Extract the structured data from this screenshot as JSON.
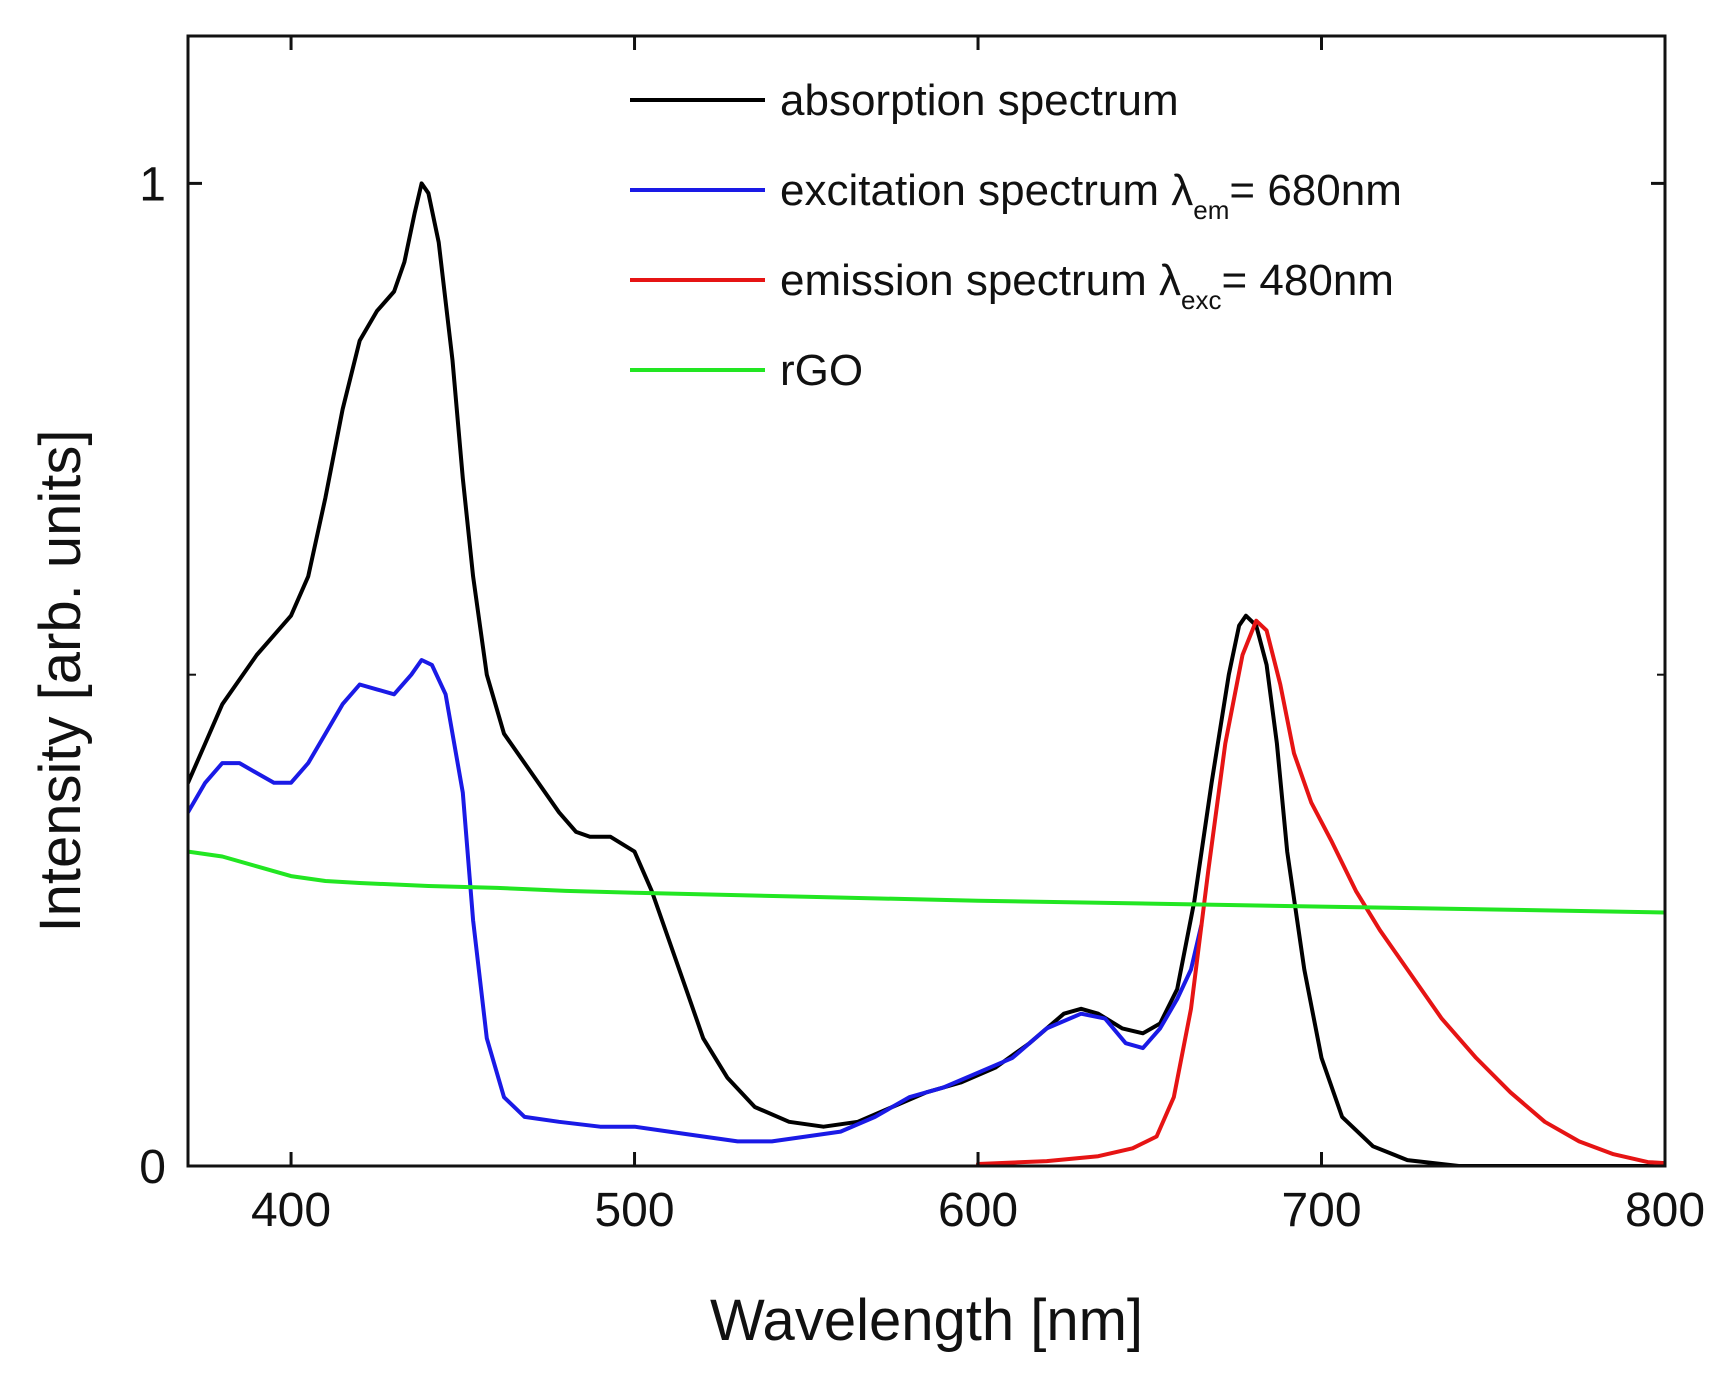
{
  "chart_data": {
    "type": "line",
    "xlabel": "Wavelength [nm]",
    "ylabel": "Intensity [arb. units]",
    "xlim": [
      370,
      800
    ],
    "ylim": [
      0,
      1.15
    ],
    "x_ticks": [
      400,
      500,
      600,
      700,
      800
    ],
    "x_tick_labels": [
      "400",
      "500",
      "600",
      "700",
      "800"
    ],
    "y_ticks": [
      0,
      1
    ],
    "y_tick_labels": [
      "0",
      "1"
    ],
    "y_minor_ticks": [
      0.5
    ],
    "grid": false,
    "legend_position": "top-right",
    "series": [
      {
        "name": "absorption spectrum",
        "legend_main": "absorption spectrum",
        "legend_sub": "",
        "legend_tail": "",
        "color": "#000000",
        "points": [
          [
            370,
            0.39
          ],
          [
            375,
            0.43
          ],
          [
            380,
            0.47
          ],
          [
            390,
            0.52
          ],
          [
            400,
            0.56
          ],
          [
            405,
            0.6
          ],
          [
            410,
            0.68
          ],
          [
            415,
            0.77
          ],
          [
            420,
            0.84
          ],
          [
            425,
            0.87
          ],
          [
            430,
            0.89
          ],
          [
            433,
            0.92
          ],
          [
            436,
            0.97
          ],
          [
            438,
            1.0
          ],
          [
            440,
            0.99
          ],
          [
            443,
            0.94
          ],
          [
            447,
            0.82
          ],
          [
            450,
            0.7
          ],
          [
            453,
            0.6
          ],
          [
            457,
            0.5
          ],
          [
            462,
            0.44
          ],
          [
            470,
            0.4
          ],
          [
            478,
            0.36
          ],
          [
            483,
            0.34
          ],
          [
            487,
            0.335
          ],
          [
            493,
            0.335
          ],
          [
            500,
            0.32
          ],
          [
            505,
            0.28
          ],
          [
            510,
            0.23
          ],
          [
            515,
            0.18
          ],
          [
            520,
            0.13
          ],
          [
            527,
            0.09
          ],
          [
            535,
            0.06
          ],
          [
            545,
            0.045
          ],
          [
            555,
            0.04
          ],
          [
            565,
            0.045
          ],
          [
            575,
            0.06
          ],
          [
            585,
            0.075
          ],
          [
            595,
            0.085
          ],
          [
            605,
            0.1
          ],
          [
            615,
            0.125
          ],
          [
            625,
            0.155
          ],
          [
            630,
            0.16
          ],
          [
            635,
            0.155
          ],
          [
            642,
            0.14
          ],
          [
            648,
            0.135
          ],
          [
            653,
            0.145
          ],
          [
            658,
            0.18
          ],
          [
            663,
            0.27
          ],
          [
            668,
            0.39
          ],
          [
            673,
            0.5
          ],
          [
            676,
            0.55
          ],
          [
            678,
            0.56
          ],
          [
            681,
            0.55
          ],
          [
            684,
            0.51
          ],
          [
            687,
            0.43
          ],
          [
            690,
            0.32
          ],
          [
            695,
            0.2
          ],
          [
            700,
            0.11
          ],
          [
            706,
            0.05
          ],
          [
            715,
            0.02
          ],
          [
            725,
            0.006
          ],
          [
            740,
            0.0
          ],
          [
            800,
            0.0
          ]
        ]
      },
      {
        "name": "excitation spectrum λem= 680nm",
        "legend_main": "excitation spectrum λ",
        "legend_sub": "em",
        "legend_tail": "= 680nm",
        "color": "#1a1ae6",
        "points": [
          [
            370,
            0.36
          ],
          [
            375,
            0.39
          ],
          [
            380,
            0.41
          ],
          [
            385,
            0.41
          ],
          [
            390,
            0.4
          ],
          [
            395,
            0.39
          ],
          [
            400,
            0.39
          ],
          [
            405,
            0.41
          ],
          [
            410,
            0.44
          ],
          [
            415,
            0.47
          ],
          [
            420,
            0.49
          ],
          [
            425,
            0.485
          ],
          [
            430,
            0.48
          ],
          [
            435,
            0.5
          ],
          [
            438,
            0.515
          ],
          [
            441,
            0.51
          ],
          [
            445,
            0.48
          ],
          [
            450,
            0.38
          ],
          [
            453,
            0.25
          ],
          [
            457,
            0.13
          ],
          [
            462,
            0.07
          ],
          [
            468,
            0.05
          ],
          [
            478,
            0.045
          ],
          [
            490,
            0.04
          ],
          [
            500,
            0.04
          ],
          [
            510,
            0.035
          ],
          [
            520,
            0.03
          ],
          [
            530,
            0.025
          ],
          [
            540,
            0.025
          ],
          [
            550,
            0.03
          ],
          [
            560,
            0.035
          ],
          [
            570,
            0.05
          ],
          [
            580,
            0.07
          ],
          [
            590,
            0.08
          ],
          [
            600,
            0.095
          ],
          [
            610,
            0.11
          ],
          [
            620,
            0.14
          ],
          [
            630,
            0.155
          ],
          [
            637,
            0.15
          ],
          [
            643,
            0.125
          ],
          [
            648,
            0.12
          ],
          [
            653,
            0.14
          ],
          [
            658,
            0.17
          ],
          [
            662,
            0.2
          ],
          [
            665,
            0.245
          ]
        ]
      },
      {
        "name": "emission spectrum λexc= 480nm",
        "legend_main": "emission spectrum λ",
        "legend_sub": "exc",
        "legend_tail": "= 480nm",
        "color": "#e61414",
        "points": [
          [
            600,
            0.002
          ],
          [
            620,
            0.005
          ],
          [
            635,
            0.01
          ],
          [
            645,
            0.018
          ],
          [
            652,
            0.03
          ],
          [
            657,
            0.07
          ],
          [
            662,
            0.16
          ],
          [
            667,
            0.3
          ],
          [
            672,
            0.43
          ],
          [
            677,
            0.52
          ],
          [
            681,
            0.555
          ],
          [
            684,
            0.545
          ],
          [
            688,
            0.49
          ],
          [
            692,
            0.42
          ],
          [
            697,
            0.37
          ],
          [
            703,
            0.33
          ],
          [
            710,
            0.28
          ],
          [
            717,
            0.24
          ],
          [
            725,
            0.2
          ],
          [
            735,
            0.15
          ],
          [
            745,
            0.11
          ],
          [
            755,
            0.075
          ],
          [
            765,
            0.045
          ],
          [
            775,
            0.025
          ],
          [
            785,
            0.012
          ],
          [
            795,
            0.004
          ],
          [
            800,
            0.003
          ]
        ]
      },
      {
        "name": "rGO",
        "legend_main": "rGO",
        "legend_sub": "",
        "legend_tail": "",
        "color": "#22e622",
        "points": [
          [
            370,
            0.32
          ],
          [
            380,
            0.315
          ],
          [
            390,
            0.305
          ],
          [
            400,
            0.295
          ],
          [
            410,
            0.29
          ],
          [
            420,
            0.288
          ],
          [
            440,
            0.285
          ],
          [
            460,
            0.283
          ],
          [
            480,
            0.28
          ],
          [
            500,
            0.278
          ],
          [
            550,
            0.274
          ],
          [
            600,
            0.27
          ],
          [
            650,
            0.267
          ],
          [
            700,
            0.264
          ],
          [
            750,
            0.261
          ],
          [
            800,
            0.258
          ]
        ]
      }
    ]
  }
}
